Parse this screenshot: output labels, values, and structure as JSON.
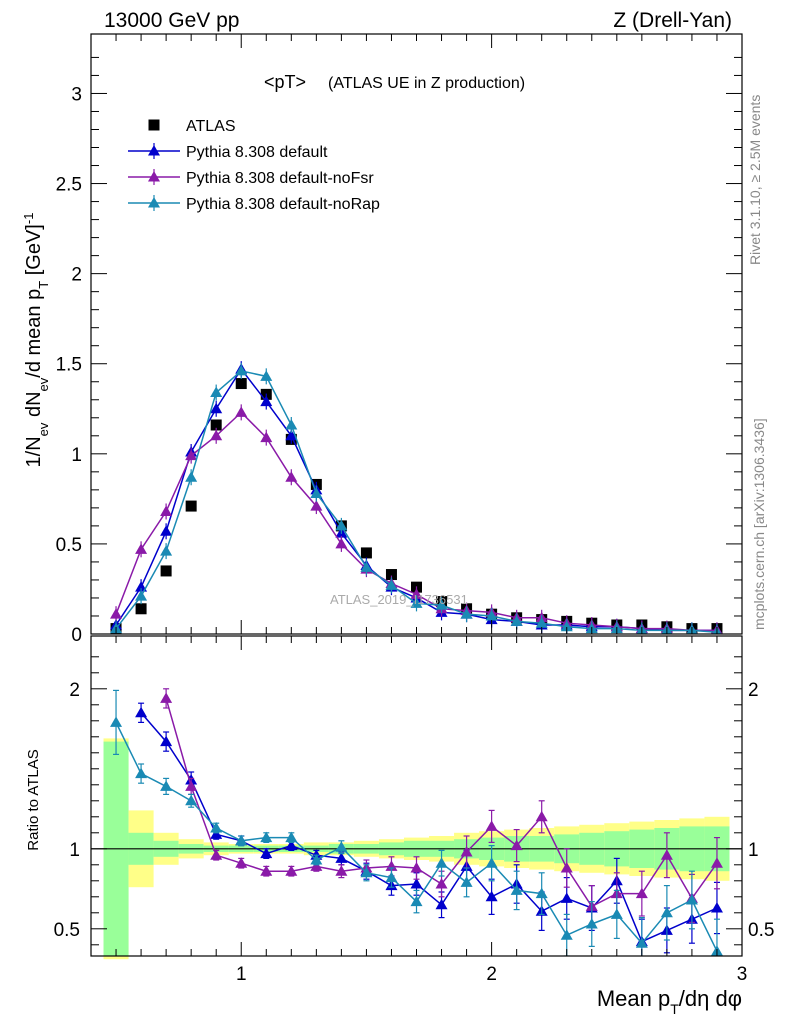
{
  "header": {
    "left": "13000 GeV pp",
    "right": "Z (Drell-Yan)"
  },
  "side": {
    "rivet": "Rivet 3.1.10, ≥ 2.5M events",
    "mcplots": "mcplots.cern.ch [arXiv:1306.3436]"
  },
  "watermark": "ATLAS_2019_I1736531",
  "chart_data": [
    {
      "type": "scatter",
      "panel": "main",
      "title": "<pT>",
      "title_note": "(ATLAS UE in Z production)",
      "ylabel": "1/N_ev dN_ev/d mean p_T [GeV]^-1",
      "xlim": [
        0.4,
        3.0
      ],
      "ylim": [
        0,
        3.33
      ],
      "yticks": [
        "0",
        "0.5",
        "1",
        "1.5",
        "2",
        "2.5",
        "3"
      ],
      "legend_position": "top-left",
      "x": [
        0.5,
        0.6,
        0.7,
        0.8,
        0.9,
        1.0,
        1.1,
        1.2,
        1.3,
        1.4,
        1.5,
        1.6,
        1.7,
        1.8,
        1.9,
        2.0,
        2.1,
        2.2,
        2.3,
        2.4,
        2.5,
        2.6,
        2.7,
        2.8,
        2.9
      ],
      "series": [
        {
          "name": "ATLAS",
          "color": "#000000",
          "marker": "square",
          "values": [
            0.03,
            0.14,
            0.35,
            0.71,
            1.16,
            1.39,
            1.33,
            1.08,
            0.83,
            0.6,
            0.45,
            0.33,
            0.26,
            0.18,
            0.14,
            0.11,
            0.09,
            0.08,
            0.07,
            0.06,
            0.05,
            0.05,
            0.04,
            0.03,
            0.03
          ]
        },
        {
          "name": "Pythia 8.308 default",
          "color": "#0000cc",
          "marker": "triangle",
          "values": [
            0.05,
            0.26,
            0.57,
            1.01,
            1.25,
            1.47,
            1.29,
            1.1,
            0.8,
            0.56,
            0.38,
            0.26,
            0.2,
            0.12,
            0.11,
            0.08,
            0.07,
            0.05,
            0.05,
            0.04,
            0.04,
            0.03,
            0.02,
            0.02,
            0.02
          ]
        },
        {
          "name": "Pythia 8.308 default-noFsr",
          "color": "#8a1aa8",
          "marker": "triangle",
          "values": [
            0.11,
            0.47,
            0.68,
            0.99,
            1.1,
            1.23,
            1.09,
            0.87,
            0.71,
            0.5,
            0.36,
            0.28,
            0.22,
            0.14,
            0.13,
            0.12,
            0.09,
            0.09,
            0.06,
            0.05,
            0.04,
            0.03,
            0.03,
            0.02,
            0.02
          ]
        },
        {
          "name": "Pythia 8.308 default-noRap",
          "color": "#1a8ab4",
          "marker": "triangle",
          "values": [
            0.03,
            0.21,
            0.46,
            0.87,
            1.34,
            1.46,
            1.43,
            1.16,
            0.78,
            0.6,
            0.37,
            0.27,
            0.17,
            0.16,
            0.11,
            0.1,
            0.07,
            0.06,
            0.04,
            0.03,
            0.03,
            0.02,
            0.02,
            0.02,
            0.01
          ]
        }
      ]
    },
    {
      "type": "scatter",
      "panel": "ratio",
      "ylabel": "Ratio to ATLAS",
      "xlabel": "Mean p_T/dη dφ",
      "xlim": [
        0.4,
        3.0
      ],
      "ylim": [
        0.33,
        2.33
      ],
      "xticks": [
        "1",
        "2",
        "3"
      ],
      "yticks": [
        "0.5",
        "1",
        "2"
      ],
      "reference_line": 1,
      "x": [
        0.5,
        0.6,
        0.7,
        0.8,
        0.9,
        1.0,
        1.1,
        1.2,
        1.3,
        1.4,
        1.5,
        1.6,
        1.7,
        1.8,
        1.9,
        2.0,
        2.1,
        2.2,
        2.3,
        2.4,
        2.5,
        2.6,
        2.7,
        2.8,
        2.9
      ],
      "bands": {
        "outer_color": "#ffff88",
        "inner_color": "#99ff99",
        "outer": [
          0.69,
          0.24,
          0.1,
          0.06,
          0.04,
          0.03,
          0.03,
          0.03,
          0.04,
          0.04,
          0.05,
          0.06,
          0.07,
          0.08,
          0.1,
          0.11,
          0.12,
          0.13,
          0.14,
          0.15,
          0.16,
          0.17,
          0.18,
          0.19,
          0.2
        ],
        "inner": [
          0.67,
          0.1,
          0.05,
          0.03,
          0.02,
          0.02,
          0.02,
          0.02,
          0.02,
          0.03,
          0.03,
          0.04,
          0.05,
          0.05,
          0.06,
          0.07,
          0.08,
          0.08,
          0.09,
          0.1,
          0.11,
          0.12,
          0.13,
          0.14,
          0.14
        ]
      },
      "series": [
        {
          "name": "Pythia 8.308 default",
          "color": "#0000cc",
          "values": [
            null,
            1.85,
            1.67,
            1.43,
            1.09,
            1.05,
            0.97,
            1.02,
            0.96,
            0.94,
            0.86,
            0.77,
            0.78,
            0.65,
            0.89,
            0.7,
            0.78,
            0.61,
            0.69,
            0.63,
            0.8,
            0.42,
            0.49,
            0.56,
            0.63
          ],
          "errors": [
            null,
            0.06,
            0.06,
            0.05,
            0.03,
            0.03,
            0.03,
            0.03,
            0.03,
            0.04,
            0.05,
            0.06,
            0.07,
            0.08,
            0.1,
            0.11,
            0.12,
            0.12,
            0.13,
            0.14,
            0.14,
            0.14,
            0.14,
            0.15,
            0.16
          ]
        },
        {
          "name": "Pythia 8.308 default-noFsr",
          "color": "#8a1aa8",
          "values": [
            null,
            null,
            1.94,
            1.39,
            0.96,
            0.91,
            0.86,
            0.86,
            0.89,
            0.86,
            0.88,
            0.89,
            0.88,
            0.78,
            0.98,
            1.14,
            1.02,
            1.2,
            0.88,
            0.64,
            0.72,
            0.72,
            0.96,
            0.69,
            0.91
          ],
          "errors": [
            null,
            null,
            0.06,
            0.05,
            0.03,
            0.03,
            0.03,
            0.03,
            0.03,
            0.04,
            0.05,
            0.06,
            0.07,
            0.08,
            0.1,
            0.1,
            0.1,
            0.1,
            0.12,
            0.13,
            0.13,
            0.14,
            0.14,
            0.15,
            0.16
          ]
        },
        {
          "name": "Pythia 8.308 default-noRap",
          "color": "#1a8ab4",
          "values": [
            1.79,
            1.47,
            1.39,
            1.3,
            1.13,
            1.05,
            1.07,
            1.07,
            0.93,
            1.01,
            0.85,
            0.82,
            0.67,
            0.91,
            0.79,
            0.91,
            0.74,
            0.72,
            0.46,
            0.53,
            0.59,
            0.41,
            0.6,
            0.68,
            0.36
          ],
          "errors": [
            0.2,
            0.06,
            0.05,
            0.04,
            0.03,
            0.03,
            0.03,
            0.03,
            0.03,
            0.04,
            0.05,
            0.06,
            0.07,
            0.08,
            0.09,
            0.11,
            0.12,
            0.13,
            0.13,
            0.14,
            0.15,
            0.16,
            0.17,
            0.18,
            0.2
          ]
        }
      ]
    }
  ]
}
